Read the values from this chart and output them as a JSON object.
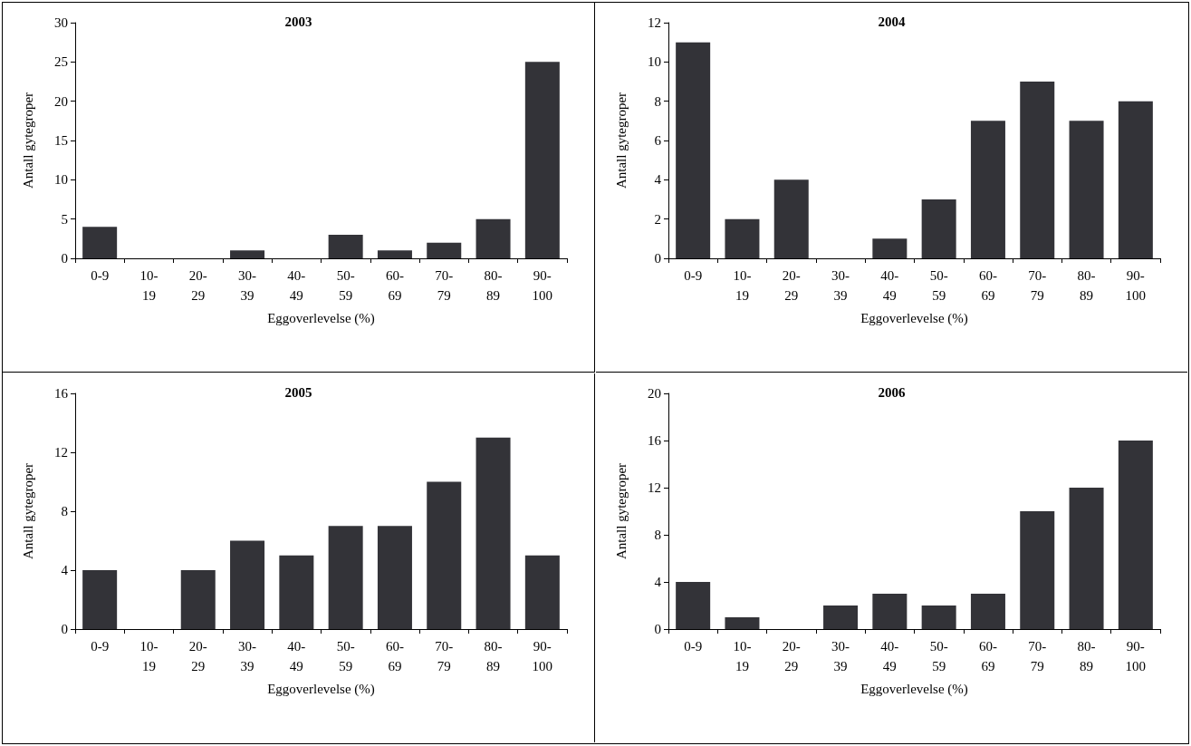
{
  "chart_data": [
    {
      "type": "bar",
      "title": "2003",
      "xlabel": "Eggoverlevelse (%)",
      "ylabel": "Antall gytegroper",
      "categories": [
        "0-9",
        "10-19",
        "20-29",
        "30-39",
        "40-49",
        "50-59",
        "60-69",
        "70-79",
        "80-89",
        "90-100"
      ],
      "values": [
        4,
        0,
        0,
        1,
        0,
        3,
        1,
        2,
        5,
        25
      ],
      "color": "#333338",
      "ylim": [
        0,
        30
      ],
      "yticks": [
        0,
        5,
        10,
        15,
        20,
        25,
        30
      ]
    },
    {
      "type": "bar",
      "title": "2004",
      "xlabel": "Eggoverlevelse (%)",
      "ylabel": "Antall gytegroper",
      "categories": [
        "0-9",
        "10-19",
        "20-29",
        "30-39",
        "40-49",
        "50-59",
        "60-69",
        "70-79",
        "80-89",
        "90-100"
      ],
      "values": [
        11,
        2,
        4,
        0,
        1,
        3,
        7,
        9,
        7,
        8
      ],
      "color": "#333338",
      "ylim": [
        0,
        12
      ],
      "yticks": [
        0,
        2,
        4,
        6,
        8,
        10,
        12
      ]
    },
    {
      "type": "bar",
      "title": "2005",
      "xlabel": "Eggoverlevelse (%)",
      "ylabel": "Antall gytegroper",
      "categories": [
        "0-9",
        "10-19",
        "20-29",
        "30-39",
        "40-49",
        "50-59",
        "60-69",
        "70-79",
        "80-89",
        "90-100"
      ],
      "values": [
        4,
        0,
        4,
        6,
        5,
        7,
        7,
        10,
        13,
        5
      ],
      "color": "#333338",
      "ylim": [
        0,
        16
      ],
      "yticks": [
        0,
        4,
        8,
        12,
        16
      ]
    },
    {
      "type": "bar",
      "title": "2006",
      "xlabel": "Eggoverlevelse (%)",
      "ylabel": "Antall gytegroper",
      "categories": [
        "0-9",
        "10-19",
        "20-29",
        "30-39",
        "40-49",
        "50-59",
        "60-69",
        "70-79",
        "80-89",
        "90-100"
      ],
      "values": [
        4,
        1,
        0,
        2,
        3,
        2,
        3,
        10,
        12,
        16
      ],
      "color": "#333338",
      "ylim": [
        0,
        20
      ],
      "yticks": [
        0,
        4,
        8,
        12,
        16,
        20
      ]
    }
  ]
}
